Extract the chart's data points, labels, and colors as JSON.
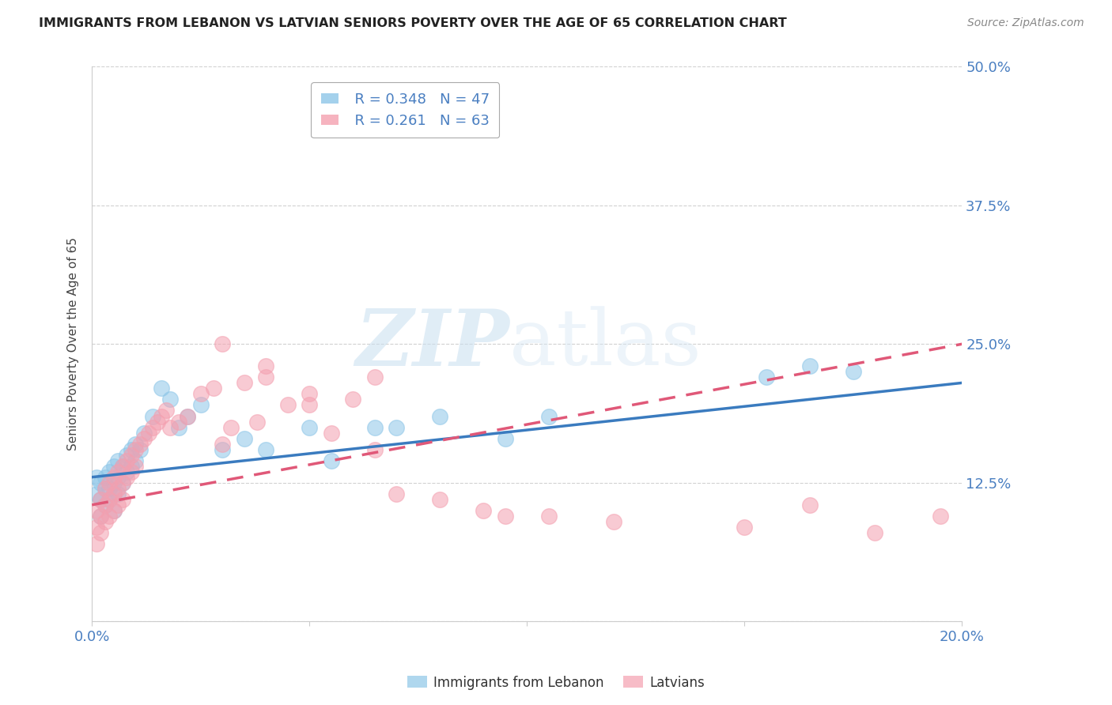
{
  "title": "IMMIGRANTS FROM LEBANON VS LATVIAN SENIORS POVERTY OVER THE AGE OF 65 CORRELATION CHART",
  "source": "Source: ZipAtlas.com",
  "ylabel": "Seniors Poverty Over the Age of 65",
  "xlim": [
    0.0,
    0.2
  ],
  "ylim": [
    0.0,
    0.5
  ],
  "yticks": [
    0.0,
    0.125,
    0.25,
    0.375,
    0.5
  ],
  "ytick_labels": [
    "",
    "12.5%",
    "25.0%",
    "37.5%",
    "50.0%"
  ],
  "xticks": [
    0.0,
    0.05,
    0.1,
    0.15,
    0.2
  ],
  "xtick_labels": [
    "0.0%",
    "",
    "",
    "",
    "20.0%"
  ],
  "legend_blue_r": "R = 0.348",
  "legend_blue_n": "N = 47",
  "legend_pink_r": "R = 0.261",
  "legend_pink_n": "N = 63",
  "blue_color": "#8dc6e8",
  "pink_color": "#f4a0b0",
  "line_blue_color": "#3a7bbf",
  "line_pink_color": "#e05878",
  "watermark_zip": "ZIP",
  "watermark_atlas": "atlas",
  "background_color": "#ffffff",
  "blue_scatter_x": [
    0.001,
    0.001,
    0.002,
    0.002,
    0.002,
    0.003,
    0.003,
    0.003,
    0.004,
    0.004,
    0.004,
    0.005,
    0.005,
    0.005,
    0.005,
    0.006,
    0.006,
    0.006,
    0.007,
    0.007,
    0.008,
    0.008,
    0.009,
    0.009,
    0.01,
    0.01,
    0.011,
    0.012,
    0.014,
    0.016,
    0.018,
    0.02,
    0.022,
    0.025,
    0.03,
    0.035,
    0.04,
    0.05,
    0.055,
    0.065,
    0.07,
    0.08,
    0.095,
    0.105,
    0.155,
    0.165,
    0.175
  ],
  "blue_scatter_y": [
    0.13,
    0.115,
    0.125,
    0.11,
    0.095,
    0.13,
    0.12,
    0.105,
    0.135,
    0.12,
    0.11,
    0.14,
    0.125,
    0.115,
    0.1,
    0.145,
    0.13,
    0.115,
    0.14,
    0.125,
    0.15,
    0.135,
    0.155,
    0.14,
    0.16,
    0.145,
    0.155,
    0.17,
    0.185,
    0.21,
    0.2,
    0.175,
    0.185,
    0.195,
    0.155,
    0.165,
    0.155,
    0.175,
    0.145,
    0.175,
    0.175,
    0.185,
    0.165,
    0.185,
    0.22,
    0.23,
    0.225
  ],
  "pink_scatter_x": [
    0.001,
    0.001,
    0.001,
    0.002,
    0.002,
    0.002,
    0.003,
    0.003,
    0.003,
    0.004,
    0.004,
    0.004,
    0.005,
    0.005,
    0.005,
    0.006,
    0.006,
    0.006,
    0.007,
    0.007,
    0.007,
    0.008,
    0.008,
    0.009,
    0.009,
    0.01,
    0.01,
    0.011,
    0.012,
    0.013,
    0.014,
    0.015,
    0.016,
    0.017,
    0.018,
    0.02,
    0.022,
    0.025,
    0.028,
    0.03,
    0.032,
    0.035,
    0.038,
    0.04,
    0.045,
    0.05,
    0.055,
    0.06,
    0.065,
    0.07,
    0.08,
    0.09,
    0.03,
    0.04,
    0.05,
    0.065,
    0.095,
    0.105,
    0.12,
    0.15,
    0.165,
    0.18,
    0.195
  ],
  "pink_scatter_y": [
    0.1,
    0.085,
    0.07,
    0.11,
    0.095,
    0.08,
    0.12,
    0.105,
    0.09,
    0.125,
    0.11,
    0.095,
    0.13,
    0.115,
    0.1,
    0.135,
    0.12,
    0.105,
    0.14,
    0.125,
    0.11,
    0.145,
    0.13,
    0.15,
    0.135,
    0.155,
    0.14,
    0.16,
    0.165,
    0.17,
    0.175,
    0.18,
    0.185,
    0.19,
    0.175,
    0.18,
    0.185,
    0.205,
    0.21,
    0.16,
    0.175,
    0.215,
    0.18,
    0.22,
    0.195,
    0.195,
    0.17,
    0.2,
    0.155,
    0.115,
    0.11,
    0.1,
    0.25,
    0.23,
    0.205,
    0.22,
    0.095,
    0.095,
    0.09,
    0.085,
    0.105,
    0.08,
    0.095
  ],
  "blue_line_x0": 0.0,
  "blue_line_y0": 0.13,
  "blue_line_x1": 0.2,
  "blue_line_y1": 0.215,
  "pink_line_x0": 0.0,
  "pink_line_y0": 0.105,
  "pink_line_x1": 0.2,
  "pink_line_y1": 0.25
}
